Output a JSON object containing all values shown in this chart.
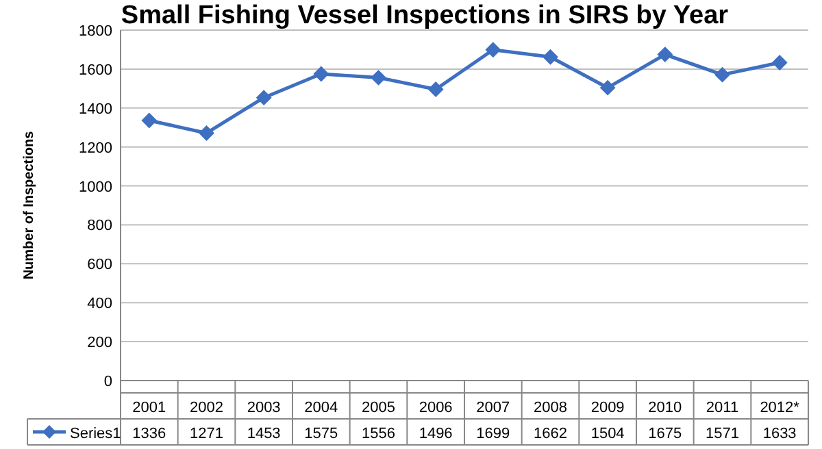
{
  "chart_data": {
    "type": "line",
    "title": "Small Fishing Vessel Inspections in SIRS by Year",
    "ylabel": "Number of Inspections",
    "categories": [
      "2001",
      "2002",
      "2003",
      "2004",
      "2005",
      "2006",
      "2007",
      "2008",
      "2009",
      "2010",
      "2011",
      "2012*"
    ],
    "series": [
      {
        "name": "Series1",
        "color": "#3f6fc0",
        "values": [
          1336,
          1271,
          1453,
          1575,
          1556,
          1496,
          1699,
          1662,
          1504,
          1675,
          1571,
          1633
        ]
      }
    ],
    "ylim": [
      0,
      1800
    ],
    "yticks": [
      0,
      200,
      400,
      600,
      800,
      1000,
      1200,
      1400,
      1600,
      1800
    ],
    "grid": "y",
    "marker": "diamond",
    "line_style": "solid",
    "data_labels": true,
    "legend": "bottom"
  }
}
